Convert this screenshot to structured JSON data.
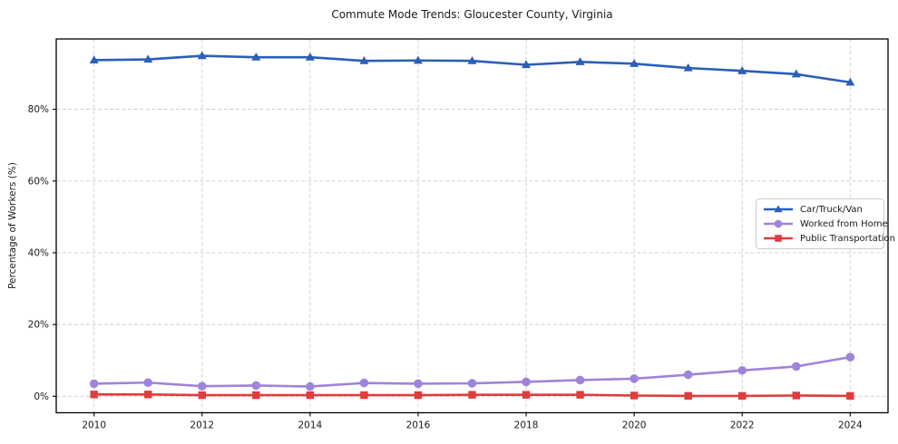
{
  "chart_data": {
    "type": "line",
    "title": "Commute Mode Trends: Gloucester County, Virginia",
    "xlabel": "",
    "ylabel": "Percentage of Workers (%)",
    "x": [
      2010,
      2011,
      2012,
      2013,
      2014,
      2015,
      2016,
      2017,
      2018,
      2019,
      2020,
      2021,
      2022,
      2023,
      2024
    ],
    "series": [
      {
        "name": "Car/Truck/Van",
        "color": "#2b5fb8",
        "marker": "triangle",
        "values": [
          93.7,
          93.9,
          94.9,
          94.5,
          94.5,
          93.5,
          93.6,
          93.5,
          92.4,
          93.2,
          92.7,
          91.5,
          90.7,
          89.8,
          87.5
        ]
      },
      {
        "name": "Worked from Home",
        "color": "#a183d9",
        "marker": "circle",
        "values": [
          3.5,
          3.8,
          2.8,
          3.0,
          2.7,
          3.7,
          3.5,
          3.6,
          4.0,
          4.5,
          4.9,
          6.0,
          7.2,
          8.3,
          10.9
        ]
      },
      {
        "name": "Public Transportation",
        "color": "#e03c3c",
        "marker": "square",
        "values": [
          0.5,
          0.5,
          0.3,
          0.3,
          0.3,
          0.3,
          0.3,
          0.4,
          0.4,
          0.4,
          0.2,
          0.1,
          0.1,
          0.2,
          0.1
        ]
      }
    ],
    "xlim": [
      2009.3,
      2024.7
    ],
    "ylim": [
      -4.6,
      99.6
    ],
    "x_ticks": [
      2010,
      2012,
      2014,
      2016,
      2018,
      2020,
      2022,
      2024
    ],
    "y_ticks": [
      0,
      20,
      40,
      60,
      80
    ],
    "y_tick_suffix": "%",
    "grid": true,
    "legend_position": "center right"
  },
  "colors": {
    "grid": "#cccccc",
    "spine": "#000000",
    "tick_label": "#1a1a1a",
    "background": "#ffffff",
    "legend_border": "#cccccc"
  }
}
